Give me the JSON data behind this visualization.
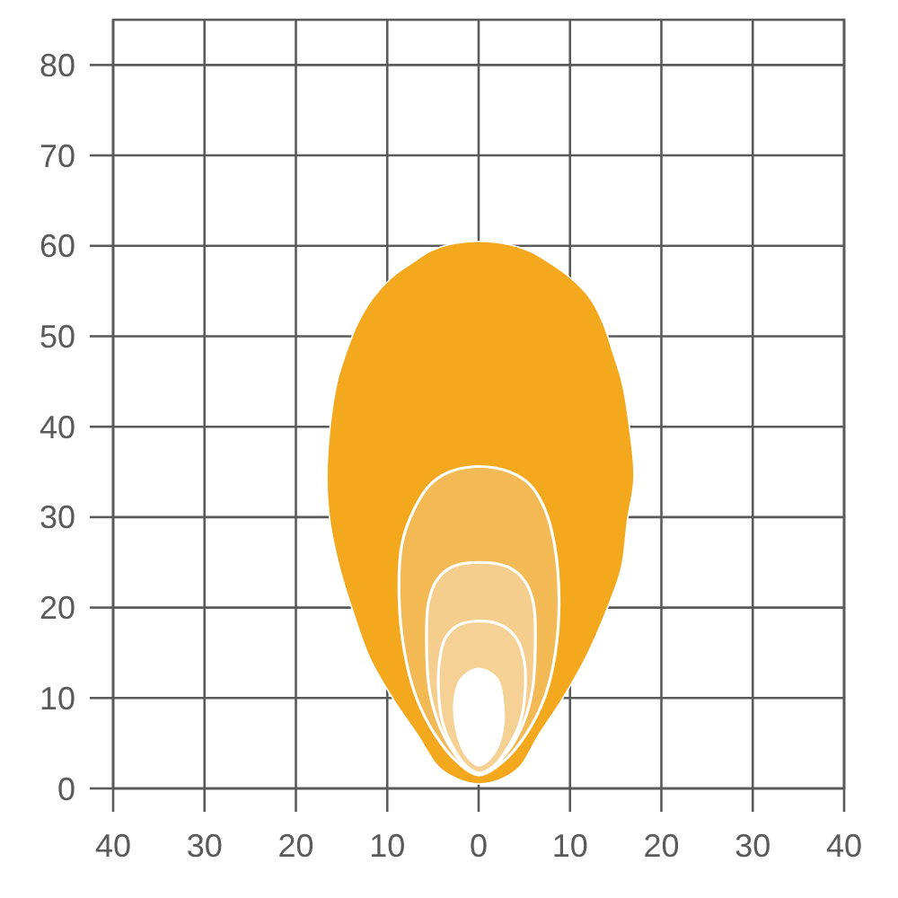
{
  "chart_data": {
    "type": "area",
    "xlim": [
      -40,
      40
    ],
    "ylim": [
      0,
      85
    ],
    "xticks": [
      {
        "value": -40,
        "label": "40"
      },
      {
        "value": -30,
        "label": "30"
      },
      {
        "value": -20,
        "label": "20"
      },
      {
        "value": -10,
        "label": "10"
      },
      0,
      10,
      20,
      30,
      40
    ],
    "yticks": [
      0,
      10,
      20,
      30,
      40,
      50,
      60,
      70,
      80
    ],
    "grid": true,
    "series": [
      {
        "color": "#f4a81d",
        "x": [
          0,
          3.5,
          5.6,
          7.8,
          10,
          12.2,
          13.6,
          14.7,
          15.7,
          16.5,
          17,
          16.3,
          15.6,
          14,
          11.7,
          9.1,
          6.5,
          4.5,
          2.6,
          0,
          -2.4,
          -4.4,
          -6.6,
          -9.3,
          -11.9,
          -13.8,
          -15.2,
          -16.3,
          -16.6,
          -16.3,
          -15.5,
          -14.5,
          -13.2,
          -11.6,
          -9.5,
          -7.3,
          -5.3,
          -3.4
        ],
        "values": [
          60.5,
          60.1,
          59.4,
          58.1,
          56.5,
          54.2,
          51.5,
          48.2,
          44.9,
          40,
          34.3,
          29.7,
          24.3,
          19.7,
          14.4,
          9.8,
          5.8,
          2.4,
          1.1,
          0.5,
          1.1,
          2.4,
          5.8,
          9.8,
          14.4,
          19.7,
          24.3,
          29.7,
          34.3,
          39.6,
          44.9,
          48.2,
          51.5,
          54.2,
          56.5,
          58.1,
          59.4,
          60.1
        ]
      },
      {
        "color": "#f3b955",
        "x": [
          0,
          3.4,
          5.6,
          7.2,
          8.3,
          8.8,
          8.4,
          7.2,
          5.2,
          2.6,
          0,
          -2.3,
          -4.8,
          -6.8,
          -8.1,
          -8.7,
          -8.4,
          -7,
          -5.3,
          -3.2
        ],
        "values": [
          35.6,
          35,
          33.6,
          31,
          27,
          21,
          15,
          10,
          6,
          2.9,
          1.5,
          2.9,
          6,
          10,
          15,
          21,
          27,
          31,
          33.6,
          35
        ]
      },
      {
        "color": "#f5cd8c",
        "x": [
          0,
          3.2,
          5,
          6,
          6.2,
          5.9,
          5,
          3.4,
          1.6,
          0,
          -1.4,
          -3,
          -4.5,
          -5.4,
          -5.7,
          -5.5,
          -4.6,
          -2.9
        ],
        "values": [
          25,
          24.5,
          23,
          20.5,
          16,
          11,
          7.5,
          4.4,
          2.4,
          1.7,
          2.4,
          4.4,
          7.5,
          11,
          16,
          20.5,
          23,
          24.5
        ]
      },
      {
        "color": "#f6d196",
        "x": [
          0,
          2.6,
          4.2,
          5,
          5.1,
          4.6,
          3.2,
          1.6,
          0,
          -1.3,
          -2.8,
          -4,
          -4.4,
          -4.3,
          -3.7,
          -2.3
        ],
        "values": [
          18.5,
          18,
          16.5,
          14,
          11,
          7.5,
          4.5,
          2.4,
          1.7,
          2.4,
          4.5,
          7.5,
          11,
          14,
          16.5,
          18
        ]
      },
      {
        "color": "#ffffff",
        "x": [
          0,
          2,
          2.6,
          2.6,
          1.6,
          0,
          -1.4,
          -2.4,
          -2.6,
          -1.9
        ],
        "values": [
          13.2,
          12.1,
          9.8,
          6.5,
          3.8,
          2.6,
          3.8,
          6.5,
          9.8,
          12.1
        ]
      }
    ]
  }
}
